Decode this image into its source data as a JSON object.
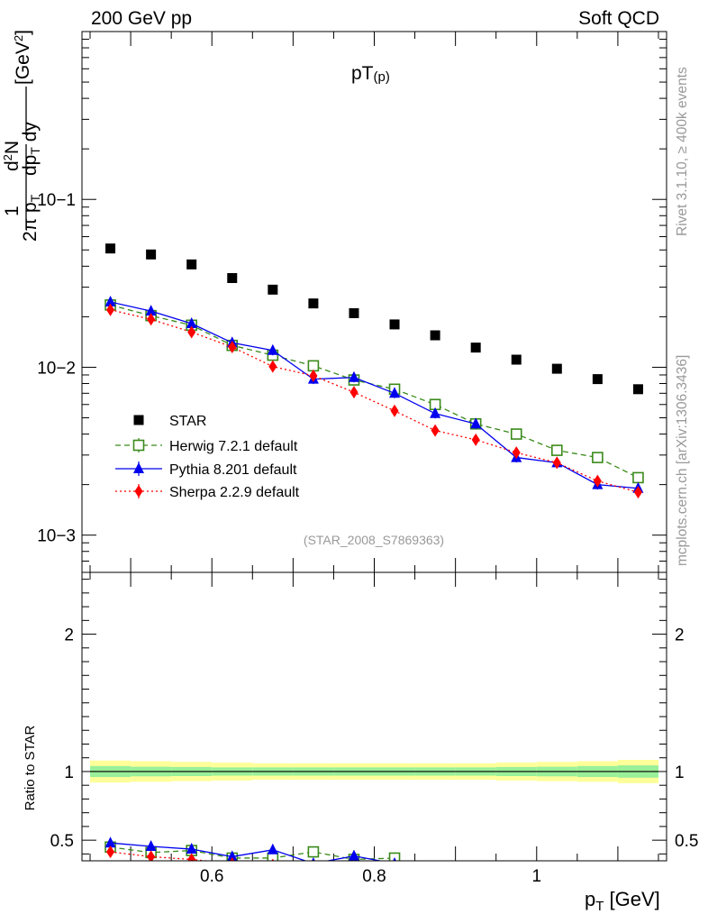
{
  "header": {
    "left": "200 GeV pp",
    "right": "Soft QCD",
    "plot_title": "pT(p)",
    "rivet_note": "Rivet 3.1.10, ≥ 400k events",
    "source_note": "mcplots.cern.ch [arXiv:1306.3436]",
    "analysis": "(STAR_2008_S7869363)"
  },
  "colors": {
    "star": "#000000",
    "herwig": "#3a8a1a",
    "pythia": "#0000ee",
    "sherpa": "#ff0000",
    "band_inner": "#99f099",
    "band_outer": "#ffff99"
  },
  "chart_data": [
    {
      "type": "scatter",
      "panel": "main",
      "ylabel": "1/2π p_T d²N/dp_T dy [GeV²]",
      "xlabel": "p_T [GeV]",
      "xlim": [
        0.44,
        1.16
      ],
      "ylim": [
        0.0006,
        1.0
      ],
      "log_y": true,
      "y_ticks": [
        "10−3",
        "10−2",
        "10−1"
      ],
      "legend_placement": "bottom-left",
      "x": [
        0.475,
        0.525,
        0.575,
        0.625,
        0.675,
        0.725,
        0.775,
        0.825,
        0.875,
        0.925,
        0.975,
        1.025,
        1.075,
        1.125
      ],
      "series": [
        {
          "name": "STAR",
          "marker": "square-filled",
          "values": [
            0.051,
            0.047,
            0.041,
            0.034,
            0.029,
            0.024,
            0.021,
            0.018,
            0.0155,
            0.0131,
            0.0111,
            0.0098,
            0.0085,
            0.0074
          ]
        },
        {
          "name": "Herwig 7.2.1 default",
          "marker": "square-open",
          "line": "dashed",
          "values": [
            0.0235,
            0.0203,
            0.0178,
            0.0135,
            0.0118,
            0.0102,
            0.0084,
            0.0074,
            0.006,
            0.0046,
            0.004,
            0.0032,
            0.0029,
            0.0022
          ]
        },
        {
          "name": "Pythia 8.201 default",
          "marker": "triangle-filled",
          "line": "solid",
          "values": [
            0.0245,
            0.0216,
            0.0182,
            0.014,
            0.0126,
            0.0085,
            0.0087,
            0.007,
            0.0053,
            0.0046,
            0.0029,
            0.0027,
            0.002,
            0.0019
          ]
        },
        {
          "name": "Sherpa 2.2.9 default",
          "marker": "diamond-filled",
          "line": "dotted",
          "values": [
            0.022,
            0.0193,
            0.0162,
            0.0132,
            0.0101,
            0.0089,
            0.0071,
            0.0055,
            0.0042,
            0.0037,
            0.0031,
            0.0027,
            0.0021,
            0.0018
          ]
        }
      ]
    },
    {
      "type": "line",
      "panel": "ratio",
      "ylabel": "Ratio to STAR",
      "xlabel": "p_T [GeV]",
      "xlim": [
        0.44,
        1.16
      ],
      "ylim": [
        0.35,
        2.45
      ],
      "x_ticks": [
        "0.6",
        "0.8",
        "1"
      ],
      "y_ticks": [
        "0.5",
        "1",
        "2"
      ],
      "band_x_edges": [
        0.45,
        0.5,
        0.55,
        0.6,
        0.65,
        0.7,
        0.75,
        0.8,
        0.85,
        0.9,
        0.95,
        1.0,
        1.05,
        1.1,
        1.15
      ],
      "band_inner_halfwidth": [
        0.04,
        0.035,
        0.033,
        0.03,
        0.03,
        0.03,
        0.03,
        0.03,
        0.03,
        0.03,
        0.033,
        0.035,
        0.04,
        0.045
      ],
      "band_outer_halfwidth": [
        0.08,
        0.075,
        0.07,
        0.065,
        0.06,
        0.06,
        0.06,
        0.06,
        0.06,
        0.06,
        0.065,
        0.07,
        0.075,
        0.085
      ],
      "x": [
        0.475,
        0.525,
        0.575,
        0.625,
        0.675,
        0.725,
        0.775,
        0.825
      ],
      "series": [
        {
          "name": "Herwig 7.2.1 default",
          "values": [
            0.45,
            0.41,
            0.425,
            0.37,
            0.37,
            0.415,
            0.36,
            0.37
          ]
        },
        {
          "name": "Pythia 8.201 default",
          "values": [
            0.48,
            0.455,
            0.435,
            0.38,
            0.43,
            0.33,
            0.385,
            0.33
          ]
        },
        {
          "name": "Sherpa 2.2.9 default",
          "values": [
            0.415,
            0.38,
            0.36,
            0.33,
            0.32,
            0.31,
            0.3,
            0.29
          ]
        }
      ]
    }
  ]
}
